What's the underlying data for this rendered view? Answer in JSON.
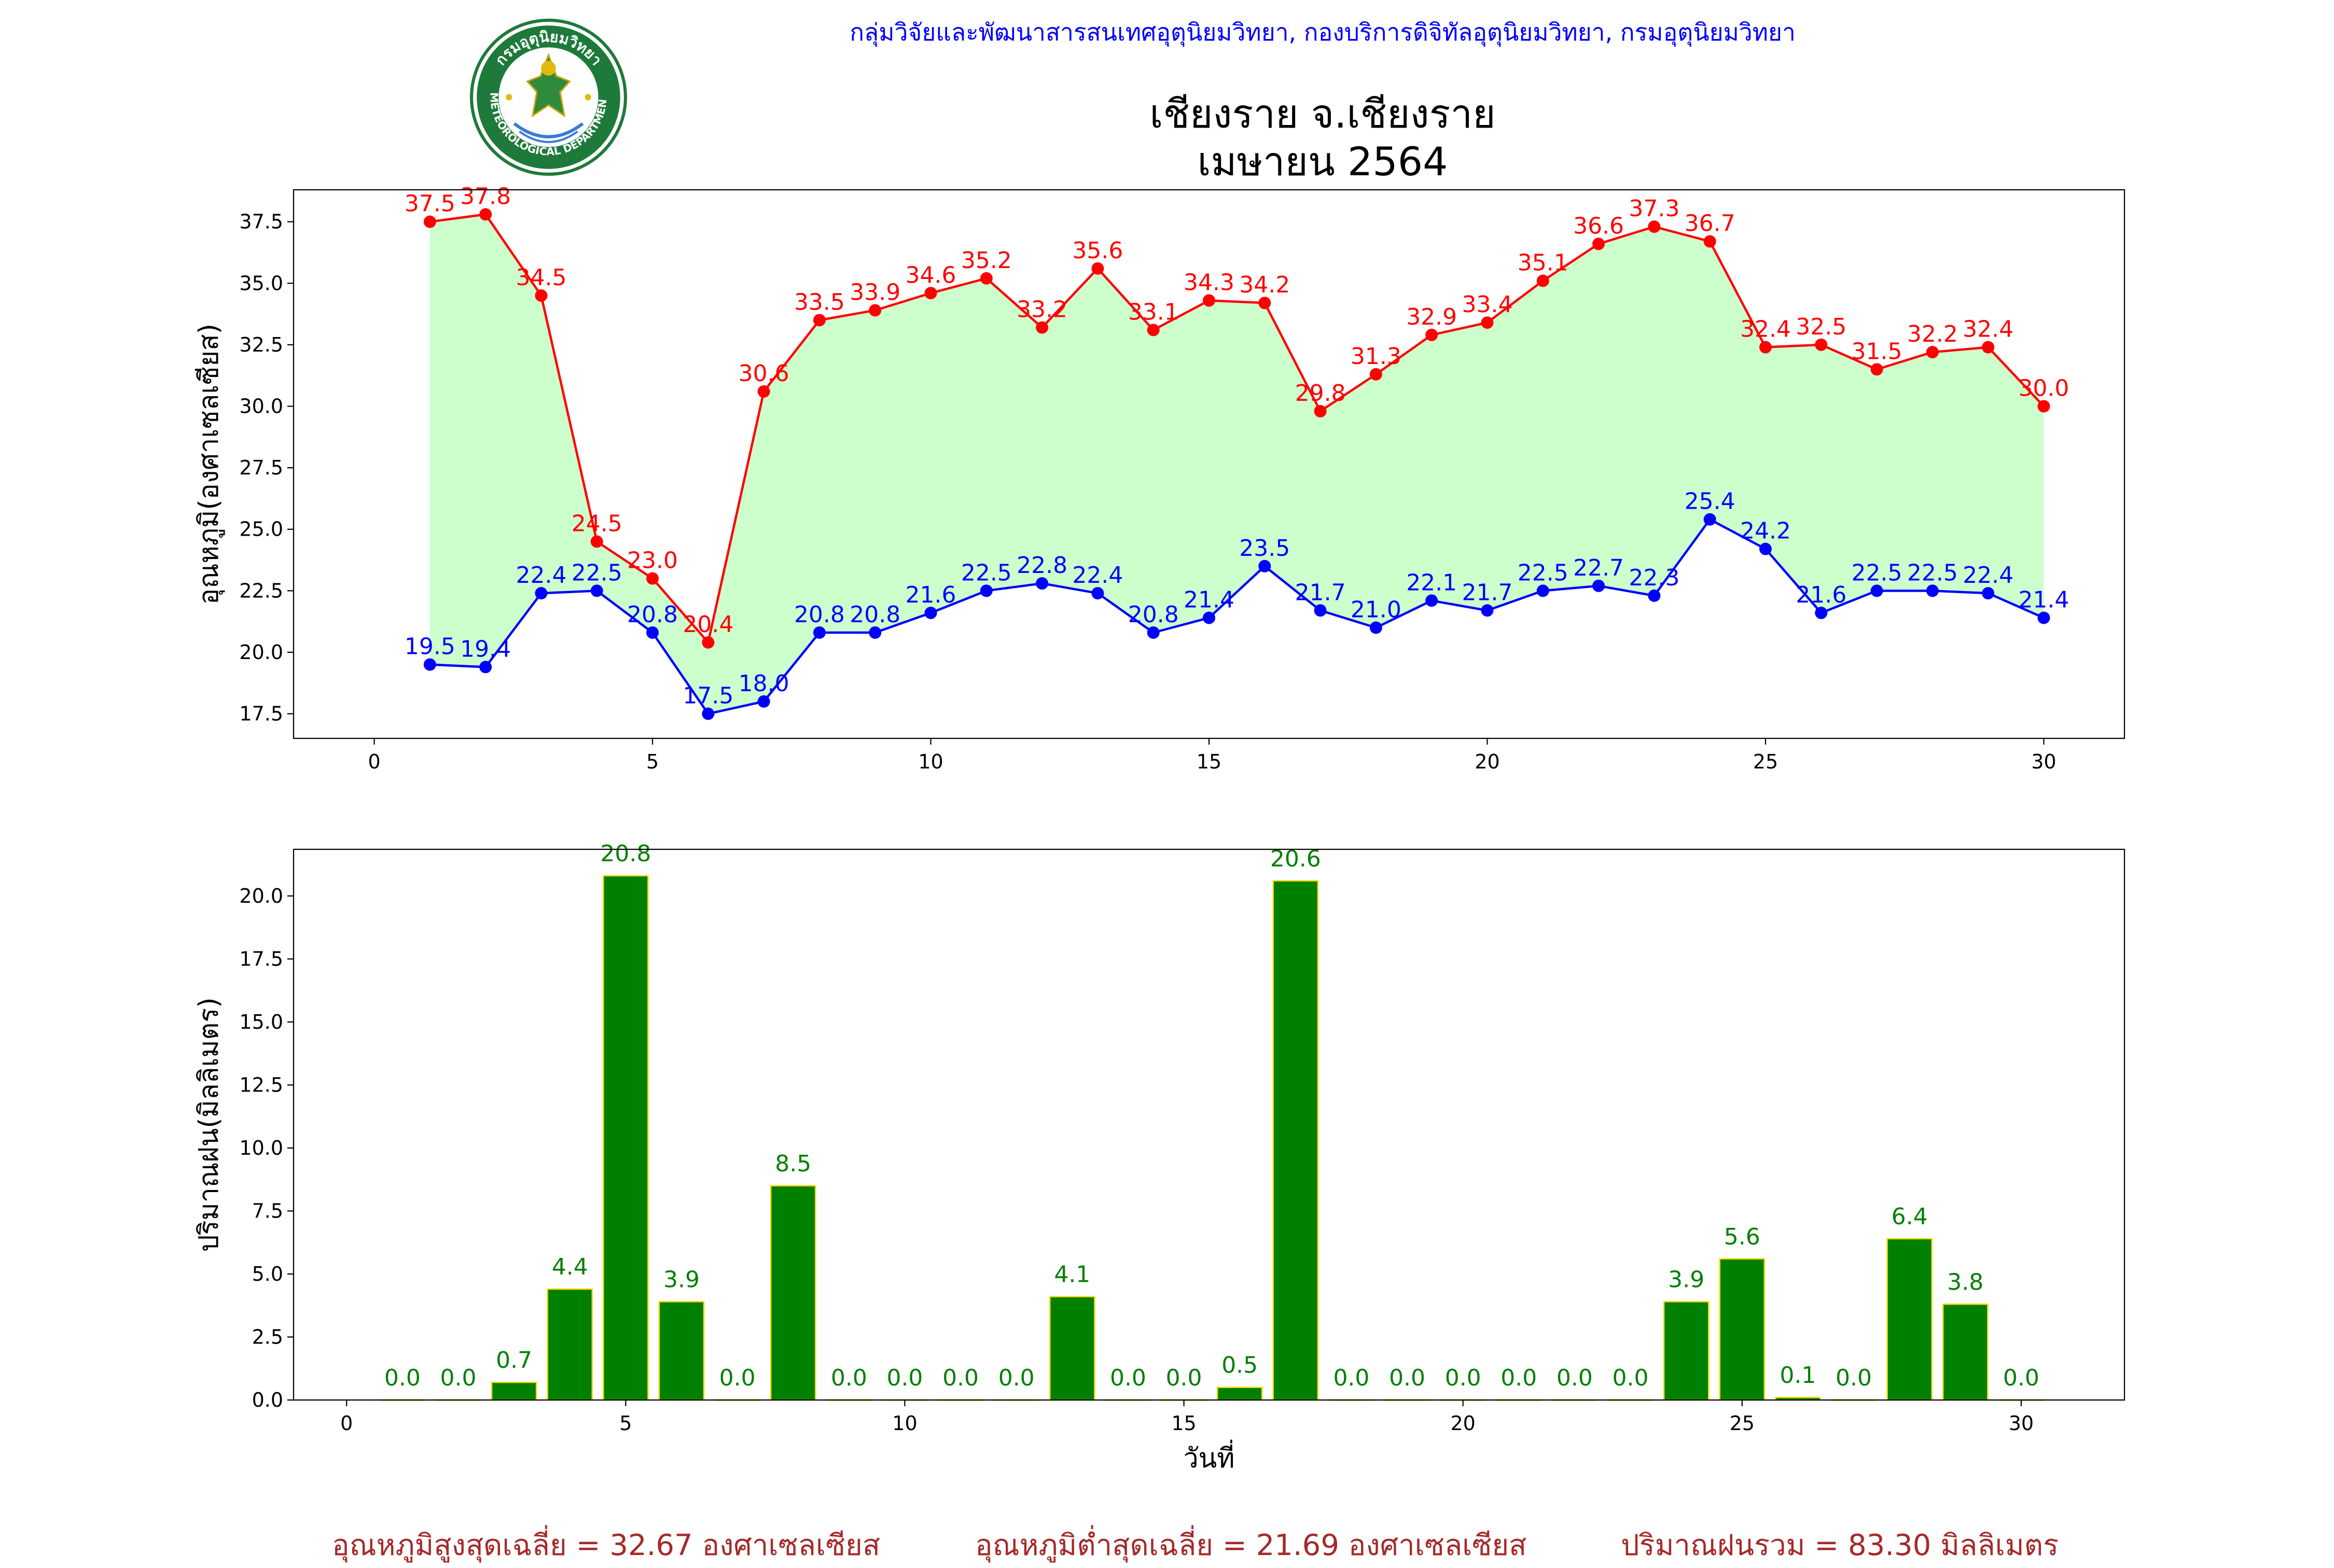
{
  "header": {
    "org_line": "กลุ่มวิจัยและพัฒนาสารสนเทศอุตุนิยมวิทยา, กองบริการดิจิทัลอุตุนิยมวิทยา, กรมอุตุนิยมวิทยา",
    "title_line1": "เชียงราย จ.เชียงราย",
    "title_line2": "เมษายน 2564",
    "logo_text_top": "กรมอุตุนิยมวิทยา",
    "logo_text_bottom": "METEOROLOGICAL DEPARTMENT"
  },
  "summary": {
    "avg_max": "อุณหภูมิสูงสุดเฉลี่ย = 32.67 องศาเซลเซียส",
    "avg_min": "อุณหภูมิต่ำสุดเฉลี่ย = 21.69 องศาเซลเซียส",
    "total_rain": "ปริมาณฝนรวม = 83.30 มิลลิเมตร"
  },
  "colors": {
    "max_line": "#ff0000",
    "min_line": "#0000ff",
    "fill": "#ccffcc",
    "bar": "#008000",
    "bar_edge": "#ffd700",
    "bar_label": "#008000",
    "header": "#0000ff",
    "summary": "#a52a2a"
  },
  "chart_data": [
    {
      "type": "line",
      "ylabel": "อุณหภูมิ(องศาเซลเซียส)",
      "xlim": [
        -1.45,
        31.45
      ],
      "ylim": [
        16.5,
        38.8
      ],
      "xticks": [
        0,
        5,
        10,
        15,
        20,
        25,
        30
      ],
      "yticks": [
        17.5,
        20.0,
        22.5,
        25.0,
        27.5,
        30.0,
        32.5,
        35.0,
        37.5
      ],
      "grid": false,
      "fill_between": "max-min",
      "x": [
        1,
        2,
        3,
        4,
        5,
        6,
        7,
        8,
        9,
        10,
        11,
        12,
        13,
        14,
        15,
        16,
        17,
        18,
        19,
        20,
        21,
        22,
        23,
        24,
        25,
        26,
        27,
        28,
        29,
        30
      ],
      "series": [
        {
          "key": "max",
          "color": "#ff0000",
          "values": [
            37.5,
            37.8,
            34.5,
            24.5,
            23.0,
            20.4,
            30.6,
            33.5,
            33.9,
            34.6,
            35.2,
            33.2,
            35.6,
            33.1,
            34.3,
            34.2,
            29.8,
            31.3,
            32.9,
            33.4,
            35.1,
            36.6,
            37.3,
            36.7,
            32.4,
            32.5,
            31.5,
            32.2,
            32.4,
            30.0
          ]
        },
        {
          "key": "min",
          "color": "#0000ff",
          "values": [
            19.5,
            19.4,
            22.4,
            22.5,
            20.8,
            17.5,
            18.0,
            20.8,
            20.8,
            21.6,
            22.5,
            22.8,
            22.4,
            20.8,
            21.4,
            23.5,
            21.7,
            21.0,
            22.1,
            21.7,
            22.5,
            22.7,
            22.3,
            25.4,
            24.2,
            21.6,
            22.5,
            22.5,
            22.4,
            21.4
          ]
        }
      ]
    },
    {
      "type": "bar",
      "xlabel": "วันที่",
      "ylabel": "ปริมาณฝน(มิลลิเมตร)",
      "xlim": [
        -0.95,
        31.85
      ],
      "ylim": [
        0,
        21.85
      ],
      "xticks": [
        0,
        5,
        10,
        15,
        20,
        25,
        30
      ],
      "yticks": [
        0.0,
        2.5,
        5.0,
        7.5,
        10.0,
        12.5,
        15.0,
        17.5,
        20.0
      ],
      "grid": false,
      "categories": [
        1,
        2,
        3,
        4,
        5,
        6,
        7,
        8,
        9,
        10,
        11,
        12,
        13,
        14,
        15,
        16,
        17,
        18,
        19,
        20,
        21,
        22,
        23,
        24,
        25,
        26,
        27,
        28,
        29,
        30
      ],
      "values": [
        0.0,
        0.0,
        0.7,
        4.4,
        20.8,
        3.9,
        0.0,
        8.5,
        0.0,
        0.0,
        0.0,
        0.0,
        4.1,
        0.0,
        0.0,
        0.5,
        20.6,
        0.0,
        0.0,
        0.0,
        0.0,
        0.0,
        0.0,
        3.9,
        5.6,
        0.1,
        0.0,
        6.4,
        3.8,
        0.0
      ]
    }
  ]
}
